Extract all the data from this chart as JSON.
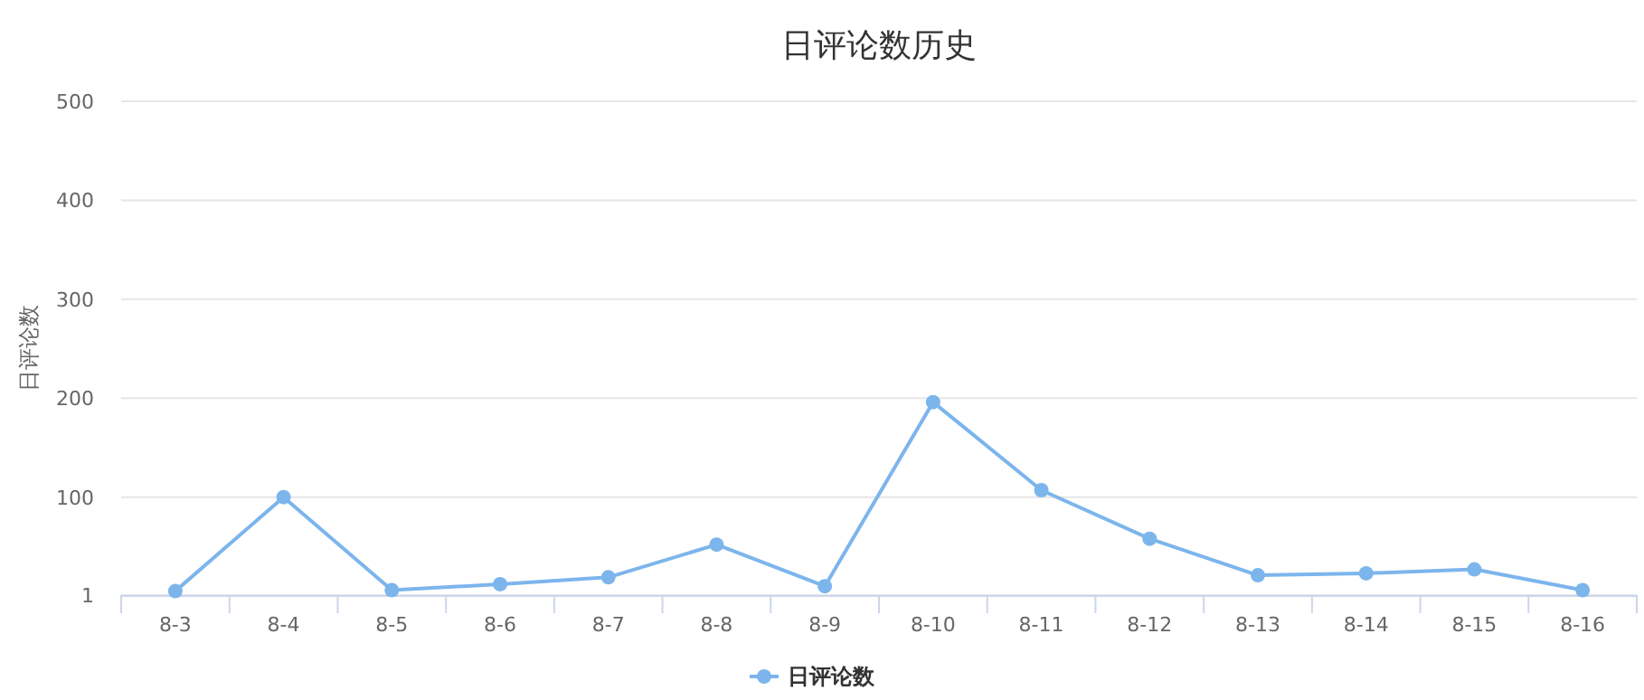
{
  "chart_data": {
    "type": "line",
    "title": "日评论数历史",
    "ylabel": "日评论数",
    "categories": [
      "8-3",
      "8-4",
      "8-5",
      "8-6",
      "8-7",
      "8-8",
      "8-9",
      "8-10",
      "8-11",
      "8-12",
      "8-13",
      "8-14",
      "8-15",
      "8-16"
    ],
    "series": [
      {
        "name": "日评论数",
        "color": "#7cb5ec",
        "values": [
          5,
          100,
          6,
          12,
          19,
          52,
          10,
          196,
          107,
          58,
          21,
          23,
          27,
          6
        ]
      }
    ],
    "ylim": [
      1,
      500
    ],
    "yticks": [
      1,
      100,
      200,
      300,
      400,
      500
    ],
    "grid": "y",
    "legend": "bottom",
    "marker": "circle",
    "line_style": "solid"
  }
}
